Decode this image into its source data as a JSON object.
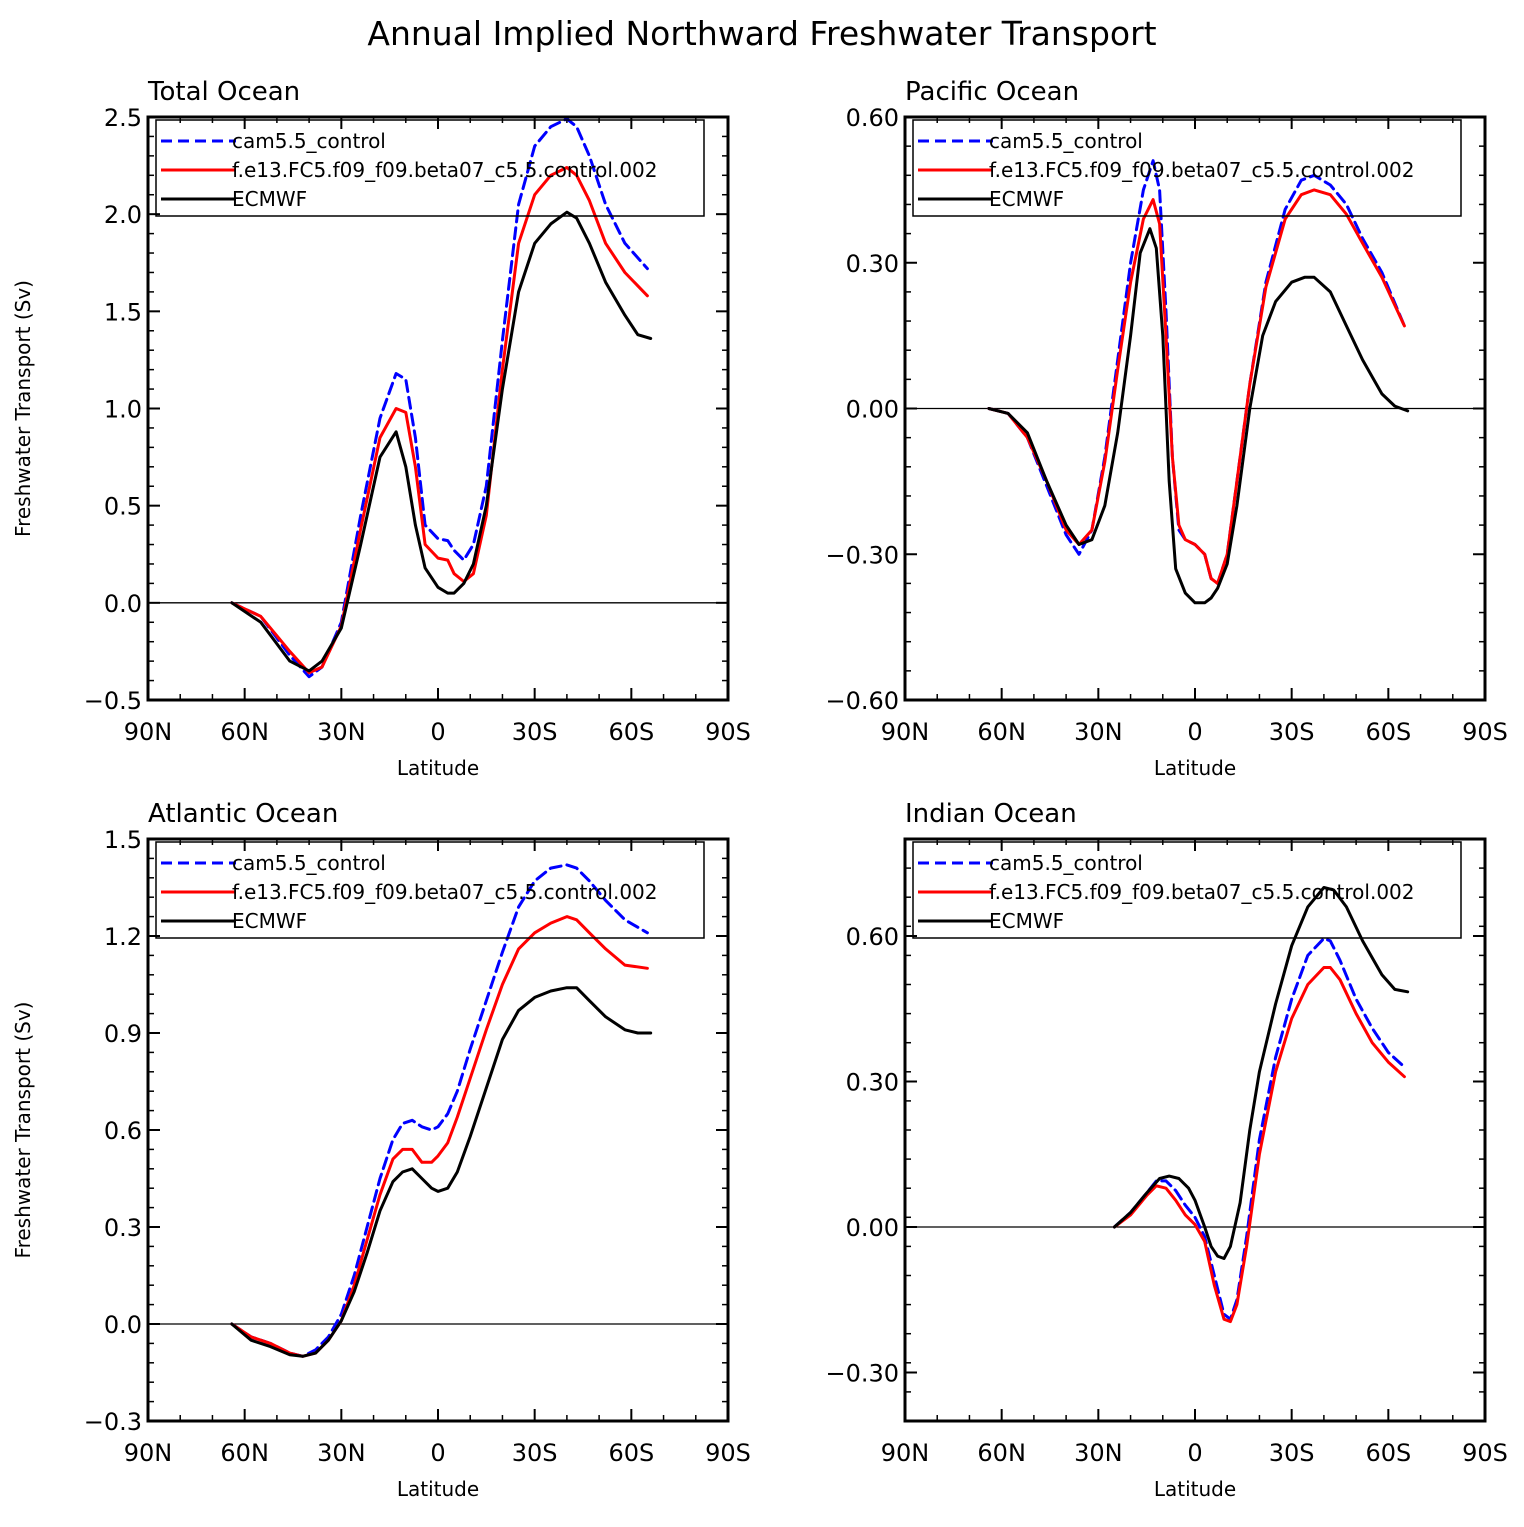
{
  "title": "Annual Implied Northward Freshwater Transport",
  "colors": {
    "cam": "#0000ff",
    "fe13": "#ff0000",
    "ecmwf": "#000000"
  },
  "chart_data": [
    {
      "type": "line",
      "panel_title": "Total Ocean",
      "xlabel": "Latitude",
      "ylabel": "Freshwater Transport (Sv)",
      "xlim": [
        -90,
        90
      ],
      "xticks": [
        -90,
        -60,
        -30,
        0,
        30,
        60,
        90
      ],
      "xtick_labels": [
        "90N",
        "60N",
        "30N",
        "0",
        "30S",
        "60S",
        "90S"
      ],
      "ylim": [
        -0.5,
        2.5
      ],
      "yticks": [
        -0.5,
        0.0,
        0.5,
        1.0,
        1.5,
        2.0,
        2.5
      ],
      "ytick_labels": [
        "−0.5",
        "0.0",
        "0.5",
        "1.0",
        "1.5",
        "2.0",
        "2.5"
      ],
      "series": [
        {
          "name": "cam5.5_control",
          "style": "dashed",
          "color": "#0000ff",
          "x": [
            -64,
            -55,
            -46,
            -40,
            -36,
            -30,
            -24,
            -18,
            -13,
            -10,
            -7,
            -4,
            0,
            3,
            5,
            8,
            11,
            15,
            20,
            25,
            30,
            35,
            40,
            43,
            47,
            52,
            58,
            65
          ],
          "y": [
            0,
            -0.07,
            -0.27,
            -0.38,
            -0.33,
            -0.1,
            0.45,
            0.95,
            1.18,
            1.15,
            0.85,
            0.4,
            0.33,
            0.32,
            0.27,
            0.22,
            0.3,
            0.6,
            1.35,
            2.05,
            2.35,
            2.45,
            2.49,
            2.45,
            2.3,
            2.05,
            1.85,
            1.72
          ]
        },
        {
          "name": "f.e13.FC5.f09_f09.beta07_c5.5.control.002",
          "style": "solid",
          "color": "#ff0000",
          "x": [
            -64,
            -55,
            -46,
            -40,
            -36,
            -30,
            -24,
            -18,
            -13,
            -10,
            -7,
            -4,
            0,
            3,
            5,
            8,
            11,
            15,
            20,
            25,
            30,
            35,
            40,
            43,
            47,
            52,
            58,
            65
          ],
          "y": [
            0,
            -0.07,
            -0.25,
            -0.36,
            -0.33,
            -0.12,
            0.38,
            0.85,
            1.0,
            0.98,
            0.7,
            0.3,
            0.23,
            0.22,
            0.15,
            0.11,
            0.15,
            0.45,
            1.2,
            1.85,
            2.1,
            2.2,
            2.24,
            2.2,
            2.07,
            1.85,
            1.7,
            1.58
          ]
        },
        {
          "name": "ECMWF",
          "style": "solid",
          "color": "#000000",
          "x": [
            -64,
            -55,
            -46,
            -40,
            -36,
            -30,
            -24,
            -18,
            -13,
            -10,
            -7,
            -4,
            0,
            3,
            5,
            8,
            11,
            15,
            20,
            25,
            30,
            35,
            40,
            43,
            47,
            52,
            58,
            62,
            66
          ],
          "y": [
            0,
            -0.1,
            -0.3,
            -0.35,
            -0.3,
            -0.13,
            0.3,
            0.75,
            0.88,
            0.7,
            0.4,
            0.18,
            0.08,
            0.05,
            0.05,
            0.1,
            0.2,
            0.5,
            1.1,
            1.6,
            1.85,
            1.95,
            2.01,
            1.98,
            1.85,
            1.65,
            1.48,
            1.38,
            1.36
          ]
        }
      ],
      "legend_position": "top-left"
    },
    {
      "type": "line",
      "panel_title": "Pacific Ocean",
      "xlabel": "Latitude",
      "ylabel": "",
      "xlim": [
        -90,
        90
      ],
      "xticks": [
        -90,
        -60,
        -30,
        0,
        30,
        60,
        90
      ],
      "xtick_labels": [
        "90N",
        "60N",
        "30N",
        "0",
        "30S",
        "60S",
        "90S"
      ],
      "ylim": [
        -0.6,
        0.6
      ],
      "yticks": [
        -0.6,
        -0.3,
        0.0,
        0.3,
        0.6
      ],
      "ytick_labels": [
        "−0.60",
        "−0.30",
        "0.00",
        "0.30",
        "0.60"
      ],
      "series": [
        {
          "name": "cam5.5_control",
          "style": "dashed",
          "color": "#0000ff",
          "x": [
            -64,
            -58,
            -52,
            -46,
            -40,
            -36,
            -32,
            -28,
            -24,
            -20,
            -16,
            -13,
            -11,
            -9,
            -7,
            -5,
            -3,
            0,
            3,
            5,
            7,
            10,
            13,
            17,
            22,
            28,
            33,
            37,
            42,
            47,
            52,
            58,
            65
          ],
          "y": [
            0,
            -0.01,
            -0.06,
            -0.16,
            -0.26,
            -0.3,
            -0.25,
            -0.1,
            0.1,
            0.3,
            0.45,
            0.51,
            0.45,
            0.2,
            -0.1,
            -0.25,
            -0.27,
            -0.28,
            -0.3,
            -0.35,
            -0.36,
            -0.3,
            -0.15,
            0.05,
            0.26,
            0.41,
            0.47,
            0.48,
            0.46,
            0.42,
            0.35,
            0.28,
            0.17
          ]
        },
        {
          "name": "f.e13.FC5.f09_f09.beta07_c5.5.control.002",
          "style": "solid",
          "color": "#ff0000",
          "x": [
            -64,
            -58,
            -52,
            -46,
            -40,
            -36,
            -32,
            -28,
            -24,
            -20,
            -16,
            -13,
            -11,
            -9,
            -7,
            -5,
            -3,
            0,
            3,
            5,
            7,
            10,
            13,
            17,
            22,
            28,
            33,
            37,
            42,
            47,
            52,
            58,
            65
          ],
          "y": [
            0,
            -0.01,
            -0.06,
            -0.15,
            -0.25,
            -0.28,
            -0.25,
            -0.11,
            0.08,
            0.26,
            0.39,
            0.43,
            0.38,
            0.15,
            -0.1,
            -0.24,
            -0.27,
            -0.28,
            -0.3,
            -0.35,
            -0.36,
            -0.3,
            -0.15,
            0.05,
            0.25,
            0.39,
            0.44,
            0.45,
            0.44,
            0.4,
            0.34,
            0.27,
            0.17
          ]
        },
        {
          "name": "ECMWF",
          "style": "solid",
          "color": "#000000",
          "x": [
            -64,
            -58,
            -52,
            -46,
            -40,
            -36,
            -32,
            -28,
            -24,
            -20,
            -17,
            -14,
            -12,
            -10,
            -8,
            -6,
            -3,
            0,
            3,
            5,
            7,
            10,
            13,
            17,
            21,
            25,
            30,
            34,
            37,
            42,
            47,
            52,
            58,
            62,
            66
          ],
          "y": [
            0,
            -0.01,
            -0.05,
            -0.15,
            -0.24,
            -0.28,
            -0.27,
            -0.2,
            -0.05,
            0.15,
            0.32,
            0.37,
            0.33,
            0.15,
            -0.15,
            -0.33,
            -0.38,
            -0.4,
            -0.4,
            -0.39,
            -0.37,
            -0.32,
            -0.2,
            0.0,
            0.15,
            0.22,
            0.26,
            0.27,
            0.27,
            0.24,
            0.17,
            0.1,
            0.03,
            0.005,
            -0.005
          ]
        }
      ],
      "legend_position": "top-left"
    },
    {
      "type": "line",
      "panel_title": "Atlantic Ocean",
      "xlabel": "Latitude",
      "ylabel": "Freshwater Transport (Sv)",
      "xlim": [
        -90,
        90
      ],
      "xticks": [
        -90,
        -60,
        -30,
        0,
        30,
        60,
        90
      ],
      "xtick_labels": [
        "90N",
        "60N",
        "30N",
        "0",
        "30S",
        "60S",
        "90S"
      ],
      "ylim": [
        -0.3,
        1.5
      ],
      "yticks": [
        -0.3,
        0.0,
        0.3,
        0.6,
        0.9,
        1.2,
        1.5
      ],
      "ytick_labels": [
        "−0.3",
        "0.0",
        "0.3",
        "0.6",
        "0.9",
        "1.2",
        "1.5"
      ],
      "series": [
        {
          "name": "cam5.5_control",
          "style": "dashed",
          "color": "#0000ff",
          "x": [
            -64,
            -58,
            -52,
            -46,
            -42,
            -38,
            -34,
            -30,
            -26,
            -22,
            -18,
            -14,
            -11,
            -8,
            -5,
            -2,
            0,
            3,
            6,
            10,
            15,
            20,
            25,
            30,
            35,
            40,
            43,
            47,
            52,
            58,
            65
          ],
          "y": [
            0,
            -0.04,
            -0.06,
            -0.09,
            -0.1,
            -0.08,
            -0.04,
            0.03,
            0.15,
            0.3,
            0.45,
            0.57,
            0.62,
            0.63,
            0.61,
            0.6,
            0.61,
            0.65,
            0.72,
            0.85,
            1.0,
            1.15,
            1.29,
            1.37,
            1.41,
            1.42,
            1.41,
            1.37,
            1.31,
            1.25,
            1.21
          ]
        },
        {
          "name": "f.e13.FC5.f09_f09.beta07_c5.5.control.002",
          "style": "solid",
          "color": "#ff0000",
          "x": [
            -64,
            -58,
            -52,
            -46,
            -42,
            -38,
            -34,
            -30,
            -26,
            -22,
            -18,
            -14,
            -11,
            -8,
            -5,
            -2,
            0,
            3,
            6,
            10,
            15,
            20,
            25,
            30,
            35,
            40,
            43,
            47,
            52,
            58,
            65
          ],
          "y": [
            0,
            -0.04,
            -0.06,
            -0.09,
            -0.1,
            -0.09,
            -0.05,
            0.01,
            0.12,
            0.26,
            0.4,
            0.51,
            0.54,
            0.54,
            0.5,
            0.5,
            0.52,
            0.56,
            0.64,
            0.76,
            0.91,
            1.05,
            1.16,
            1.21,
            1.24,
            1.26,
            1.25,
            1.21,
            1.16,
            1.11,
            1.1
          ]
        },
        {
          "name": "ECMWF",
          "style": "solid",
          "color": "#000000",
          "x": [
            -64,
            -58,
            -52,
            -46,
            -42,
            -38,
            -34,
            -30,
            -26,
            -22,
            -18,
            -14,
            -11,
            -8,
            -5,
            -2,
            0,
            3,
            6,
            10,
            15,
            20,
            25,
            30,
            35,
            40,
            43,
            47,
            52,
            58,
            62,
            66
          ],
          "y": [
            0,
            -0.05,
            -0.07,
            -0.095,
            -0.1,
            -0.09,
            -0.05,
            0.01,
            0.1,
            0.22,
            0.35,
            0.44,
            0.47,
            0.48,
            0.45,
            0.42,
            0.41,
            0.42,
            0.47,
            0.58,
            0.73,
            0.88,
            0.97,
            1.01,
            1.03,
            1.04,
            1.04,
            1.0,
            0.95,
            0.91,
            0.9,
            0.9
          ]
        }
      ],
      "legend_position": "top-left"
    },
    {
      "type": "line",
      "panel_title": "Indian Ocean",
      "xlabel": "Latitude",
      "ylabel": "",
      "xlim": [
        -90,
        90
      ],
      "xticks": [
        -90,
        -60,
        -30,
        0,
        30,
        60,
        90
      ],
      "xtick_labels": [
        "90N",
        "60N",
        "30N",
        "0",
        "30S",
        "60S",
        "90S"
      ],
      "ylim": [
        -0.4,
        0.8
      ],
      "yticks": [
        -0.3,
        0.0,
        0.3,
        0.6
      ],
      "ytick_labels": [
        "−0.30",
        "0.00",
        "0.30",
        "0.60"
      ],
      "series": [
        {
          "name": "cam5.5_control",
          "style": "dashed",
          "color": "#0000ff",
          "x": [
            -25,
            -20,
            -15,
            -12,
            -9,
            -6,
            -3,
            0,
            3,
            6,
            9,
            11,
            13,
            16,
            20,
            25,
            30,
            35,
            40,
            42,
            45,
            50,
            55,
            60,
            65
          ],
          "y": [
            0,
            0.03,
            0.07,
            0.095,
            0.095,
            0.075,
            0.045,
            0.02,
            -0.02,
            -0.1,
            -0.18,
            -0.19,
            -0.15,
            -0.02,
            0.18,
            0.35,
            0.47,
            0.56,
            0.595,
            0.59,
            0.55,
            0.47,
            0.41,
            0.36,
            0.33
          ]
        },
        {
          "name": "f.e13.FC5.f09_f09.beta07_c5.5.control.002",
          "style": "solid",
          "color": "#ff0000",
          "x": [
            -25,
            -20,
            -15,
            -12,
            -9,
            -6,
            -3,
            0,
            3,
            6,
            9,
            11,
            13,
            16,
            20,
            25,
            30,
            35,
            40,
            42,
            45,
            50,
            55,
            60,
            65
          ],
          "y": [
            0,
            0.025,
            0.065,
            0.085,
            0.08,
            0.055,
            0.025,
            0.005,
            -0.03,
            -0.12,
            -0.19,
            -0.195,
            -0.16,
            -0.04,
            0.15,
            0.32,
            0.43,
            0.5,
            0.535,
            0.535,
            0.51,
            0.44,
            0.38,
            0.34,
            0.31
          ]
        },
        {
          "name": "ECMWF",
          "style": "solid",
          "color": "#000000",
          "x": [
            -25,
            -20,
            -15,
            -11,
            -8,
            -5,
            -2,
            0,
            3,
            5,
            7,
            9,
            11,
            14,
            17,
            20,
            25,
            30,
            35,
            40,
            43,
            47,
            52,
            58,
            62,
            66
          ],
          "y": [
            0,
            0.03,
            0.07,
            0.1,
            0.105,
            0.1,
            0.08,
            0.055,
            0.0,
            -0.04,
            -0.06,
            -0.065,
            -0.04,
            0.05,
            0.2,
            0.32,
            0.46,
            0.58,
            0.66,
            0.7,
            0.695,
            0.66,
            0.59,
            0.52,
            0.49,
            0.485
          ]
        }
      ],
      "legend_position": "top-left"
    }
  ]
}
